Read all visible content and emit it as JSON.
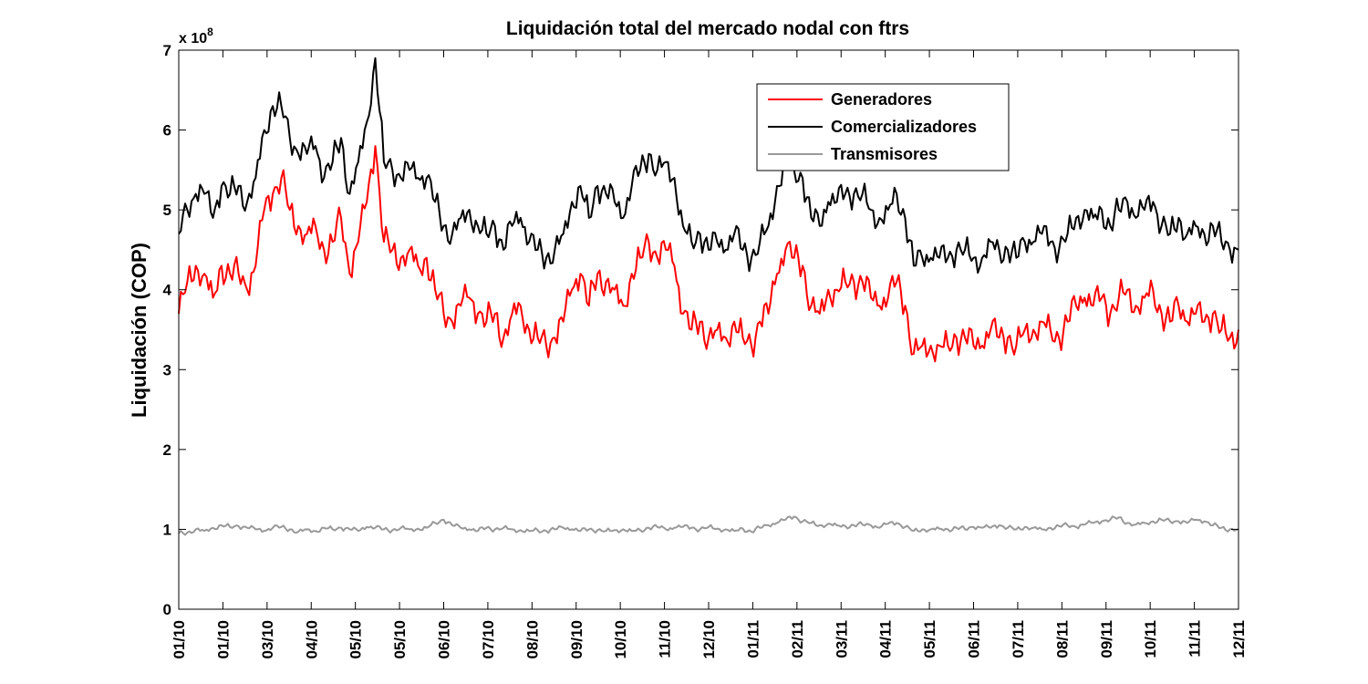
{
  "chart_data": {
    "type": "line",
    "title": "Liquidación total del mercado nodal con ftrs",
    "ylabel": "Liquidación (COP)",
    "xlabel": "",
    "y_multiplier_label": "x 10",
    "y_multiplier_exponent": "8",
    "ylim": [
      0,
      7
    ],
    "yticks": [
      "0",
      "1",
      "2",
      "3",
      "4",
      "5",
      "6",
      "7"
    ],
    "xticks": [
      "01/10",
      "01/10",
      "03/10",
      "04/10",
      "05/10",
      "05/10",
      "06/10",
      "07/10",
      "08/10",
      "09/10",
      "10/10",
      "11/10",
      "12/10",
      "01/11",
      "02/11",
      "03/11",
      "04/11",
      "05/11",
      "06/11",
      "07/11",
      "08/11",
      "09/11",
      "10/11",
      "11/11",
      "12/11"
    ],
    "grid": false,
    "legend_position": "top-right",
    "series": [
      {
        "name": "Generadores",
        "color": "#ff0000",
        "values": [
          3.7,
          4.1,
          4.3,
          4.2,
          3.9,
          4.3,
          4.2,
          4.2,
          4.0,
          4.3,
          5.0,
          5.2,
          5.4,
          5.0,
          4.8,
          4.7,
          4.8,
          4.5,
          4.6,
          4.9,
          4.2,
          4.6,
          5.1,
          5.8,
          4.6,
          4.5,
          4.4,
          4.5,
          4.3,
          4.4,
          4.0,
          3.7,
          3.6,
          3.8,
          3.9,
          3.7,
          3.6,
          3.7,
          3.4,
          3.7,
          3.8,
          3.5,
          3.4,
          3.3,
          3.4,
          3.6,
          4.0,
          4.2,
          3.8,
          4.2,
          4.1,
          4.0,
          3.8,
          4.2,
          4.4,
          4.6,
          4.4,
          4.5,
          4.3,
          3.7,
          3.5,
          3.6,
          3.4,
          3.5,
          3.4,
          3.6,
          3.4,
          3.3,
          3.6,
          3.7,
          4.2,
          4.5,
          4.4,
          4.3,
          3.8,
          3.7,
          4.0,
          4.0,
          4.1,
          4.1,
          4.1,
          3.9,
          3.8,
          3.9,
          4.1,
          3.8,
          3.2,
          3.3,
          3.3,
          3.3,
          3.3,
          3.4,
          3.4,
          3.3,
          3.3,
          3.5,
          3.4,
          3.4,
          3.3,
          3.5,
          3.5,
          3.6,
          3.5,
          3.4,
          3.6,
          3.8,
          3.9,
          3.8,
          3.9,
          3.7,
          3.9,
          4.0,
          3.8,
          3.9,
          4.0,
          3.7,
          3.6,
          3.8,
          3.6,
          3.7,
          3.6,
          3.7,
          3.5,
          3.4,
          3.5
        ]
      },
      {
        "name": "Comercializadores",
        "color": "#000000",
        "values": [
          4.7,
          5.0,
          5.2,
          5.2,
          4.9,
          5.3,
          5.2,
          5.3,
          5.1,
          5.4,
          6.0,
          6.3,
          6.3,
          5.9,
          5.7,
          5.7,
          5.8,
          5.4,
          5.6,
          5.9,
          5.2,
          5.6,
          6.1,
          6.9,
          5.6,
          5.5,
          5.4,
          5.5,
          5.4,
          5.4,
          5.1,
          4.8,
          4.7,
          4.9,
          5.0,
          4.8,
          4.7,
          4.8,
          4.5,
          4.8,
          4.9,
          4.6,
          4.5,
          4.4,
          4.5,
          4.7,
          5.1,
          5.3,
          4.9,
          5.3,
          5.2,
          5.1,
          4.9,
          5.3,
          5.5,
          5.7,
          5.5,
          5.6,
          5.4,
          4.8,
          4.6,
          4.7,
          4.5,
          4.6,
          4.5,
          4.7,
          4.5,
          4.4,
          4.6,
          4.8,
          5.3,
          5.6,
          5.5,
          5.4,
          4.9,
          4.8,
          5.1,
          5.1,
          5.2,
          5.2,
          5.2,
          5.0,
          4.9,
          5.0,
          5.2,
          4.9,
          4.3,
          4.4,
          4.4,
          4.4,
          4.4,
          4.5,
          4.5,
          4.4,
          4.4,
          4.6,
          4.5,
          4.5,
          4.4,
          4.6,
          4.6,
          4.7,
          4.6,
          4.5,
          4.7,
          4.9,
          5.0,
          4.9,
          5.0,
          4.8,
          5.0,
          5.1,
          4.9,
          5.0,
          5.1,
          4.8,
          4.7,
          4.9,
          4.7,
          4.8,
          4.7,
          4.8,
          4.6,
          4.5,
          4.5
        ]
      },
      {
        "name": "Transmisores",
        "color": "#999999",
        "values": [
          0.95,
          0.96,
          1.0,
          0.98,
          1.02,
          1.05,
          1.03,
          1.04,
          1.02,
          1.0,
          0.98,
          1.02,
          1.03,
          1.0,
          0.97,
          1.0,
          0.98,
          1.02,
          1.0,
          1.02,
          1.0,
          0.98,
          1.03,
          1.02,
          1.0,
          0.99,
          1.02,
          1.0,
          1.01,
          1.02,
          1.08,
          1.12,
          1.05,
          1.02,
          1.0,
          0.98,
          1.02,
          1.0,
          1.02,
          1.0,
          0.99,
          0.98,
          0.99,
          0.98,
          1.0,
          1.02,
          1.0,
          0.98,
          1.0,
          0.99,
          0.98,
          0.99,
          1.0,
          0.98,
          0.99,
          1.02,
          1.03,
          1.0,
          1.02,
          1.03,
          1.02,
          1.0,
          1.03,
          1.01,
          1.0,
          0.98,
          1.01,
          0.97,
          1.02,
          1.05,
          1.08,
          1.12,
          1.16,
          1.1,
          1.08,
          1.05,
          1.07,
          1.05,
          1.04,
          1.05,
          1.06,
          1.05,
          1.02,
          1.07,
          1.08,
          1.03,
          0.98,
          1.0,
          1.0,
          1.01,
          1.0,
          1.02,
          1.0,
          1.03,
          1.02,
          1.02,
          1.05,
          1.02,
          1.0,
          1.03,
          1.02,
          1.0,
          1.02,
          1.04,
          1.05,
          1.03,
          1.06,
          1.08,
          1.1,
          1.12,
          1.15,
          1.08,
          1.06,
          1.08,
          1.1,
          1.12,
          1.1,
          1.1,
          1.08,
          1.12,
          1.1,
          1.05,
          1.02,
          1.0,
          1.0
        ]
      }
    ]
  }
}
